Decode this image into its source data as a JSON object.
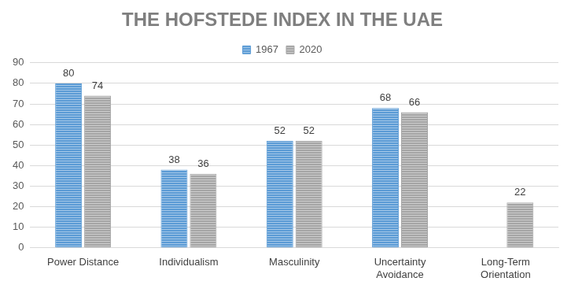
{
  "chart_data": {
    "type": "bar",
    "title": "THE HOFSTEDE INDEX IN THE UAE",
    "categories": [
      "Power Distance",
      "Individualism",
      "Masculinity",
      "Uncertainty Avoidance",
      "Long-Term Orientation"
    ],
    "series": [
      {
        "name": "1967",
        "color": "#5b9bd5",
        "values": [
          80,
          38,
          52,
          68,
          null
        ]
      },
      {
        "name": "2020",
        "color": "#a5a5a5",
        "values": [
          74,
          36,
          52,
          66,
          22
        ]
      }
    ],
    "ylim": [
      0,
      90
    ],
    "yticks": [
      0,
      10,
      20,
      30,
      40,
      50,
      60,
      70,
      80,
      90
    ],
    "grid": true,
    "legend": "top",
    "data_labels": true
  }
}
